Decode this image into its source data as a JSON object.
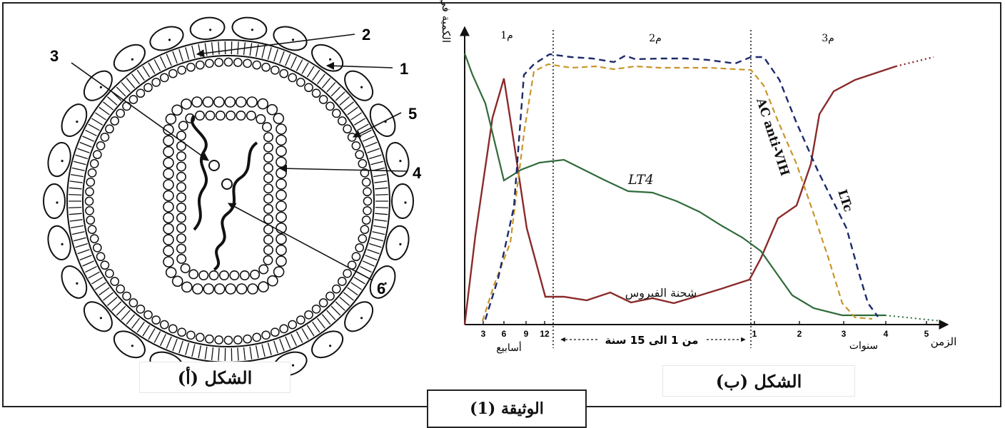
{
  "document": {
    "title": "الوثيقة (1)"
  },
  "figure_a": {
    "caption": "الشكل (أ)",
    "labels": [
      "1",
      "2",
      "3",
      "4",
      "5",
      "6"
    ]
  },
  "figure_b": {
    "caption": "الشكل (ب)",
    "y_axis_label": "الكمية في الدم",
    "x_axis_label": "الزمن",
    "phases": [
      "م1",
      "م2",
      "م3"
    ],
    "x_ticks_weeks": [
      "3",
      "6",
      "9",
      "12"
    ],
    "weeks_unit": "أسابيع",
    "middle_span": "من 1 الى 15 سنة",
    "x_ticks_years": [
      "1",
      "2",
      "3",
      "4",
      "5"
    ],
    "years_unit": "سنوات",
    "curve_labels": {
      "viral_load": "شحنة الفيروس",
      "lt4": "LT4",
      "antibodies": "AC anti-VIH",
      "ltc": "LTc"
    }
  },
  "colors": {
    "viral_load": "#8b2a2a",
    "lt4": "#2f6b3a",
    "antibodies": "#c8952a",
    "ltc": "#1c2a6b"
  }
}
